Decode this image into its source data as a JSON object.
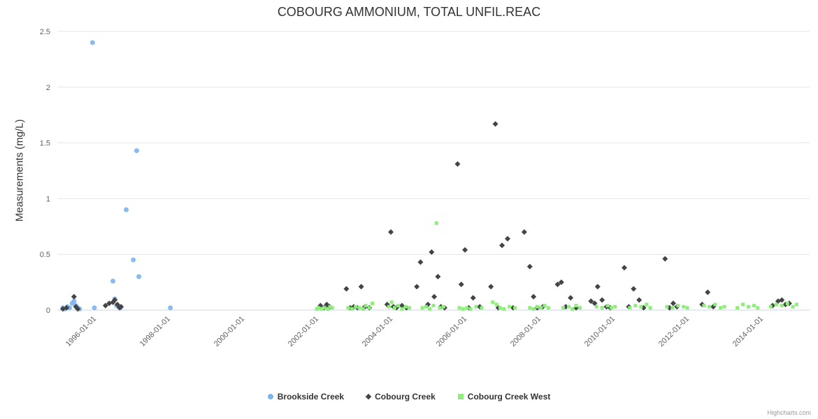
{
  "title": "COBOURG AMMONIUM, TOTAL UNFIL.REAC",
  "credit": "Highcharts.com",
  "chart_data": {
    "type": "scatter",
    "title": "COBOURG AMMONIUM, TOTAL UNFIL.REAC",
    "xlabel": "",
    "ylabel": "Measurements (mg/L)",
    "ylim": [
      0,
      2.5
    ],
    "yticks": [
      0,
      0.5,
      1,
      1.5,
      2,
      2.5
    ],
    "xlim_years": [
      1995.0,
      2015.3
    ],
    "xticks": [
      "1996-01-01",
      "1998-01-01",
      "2000-01-01",
      "2002-01-01",
      "2004-01-01",
      "2006-01-01",
      "2008-01-01",
      "2010-01-01",
      "2012-01-01",
      "2014-01-01"
    ],
    "grid": true,
    "legend_position": "bottom",
    "gridline_color": "#e6e6e6",
    "axis_line_color": "#ccd6eb",
    "series": [
      {
        "name": "Brookside Creek",
        "marker": "circle",
        "color": "#7cb5ec",
        "points": [
          [
            1995.15,
            0.02
          ],
          [
            1995.2,
            0.01
          ],
          [
            1995.27,
            0.03
          ],
          [
            1995.33,
            0.02
          ],
          [
            1995.4,
            0.06
          ],
          [
            1995.45,
            0.08
          ],
          [
            1995.5,
            0.04
          ],
          [
            1995.55,
            0.02
          ],
          [
            1995.6,
            0.01
          ],
          [
            1995.95,
            2.4
          ],
          [
            1996.0,
            0.02
          ],
          [
            1996.5,
            0.26
          ],
          [
            1996.55,
            0.1
          ],
          [
            1996.6,
            0.04
          ],
          [
            1996.65,
            0.03
          ],
          [
            1996.7,
            0.02
          ],
          [
            1996.86,
            0.9
          ],
          [
            1997.05,
            0.45
          ],
          [
            1997.14,
            1.43
          ],
          [
            1997.2,
            0.3
          ],
          [
            1998.05,
            0.02
          ]
        ]
      },
      {
        "name": "Cobourg Creek",
        "marker": "diamond",
        "color": "#434348",
        "points": [
          [
            1995.15,
            0.01
          ],
          [
            1995.25,
            0.02
          ],
          [
            1995.45,
            0.12
          ],
          [
            1995.5,
            0.03
          ],
          [
            1995.55,
            0.01
          ],
          [
            1996.3,
            0.04
          ],
          [
            1996.4,
            0.06
          ],
          [
            1996.5,
            0.07
          ],
          [
            1996.55,
            0.09
          ],
          [
            1996.62,
            0.05
          ],
          [
            1996.68,
            0.02
          ],
          [
            1996.72,
            0.03
          ],
          [
            2002.1,
            0.04
          ],
          [
            2002.2,
            0.02
          ],
          [
            2002.27,
            0.05
          ],
          [
            2002.35,
            0.03
          ],
          [
            2002.8,
            0.19
          ],
          [
            2002.9,
            0.02
          ],
          [
            2003.0,
            0.03
          ],
          [
            2003.1,
            0.02
          ],
          [
            2003.2,
            0.21
          ],
          [
            2003.3,
            0.03
          ],
          [
            2003.42,
            0.02
          ],
          [
            2003.9,
            0.05
          ],
          [
            2004.0,
            0.7
          ],
          [
            2004.07,
            0.03
          ],
          [
            2004.15,
            0.02
          ],
          [
            2004.3,
            0.04
          ],
          [
            2004.42,
            0.02
          ],
          [
            2004.7,
            0.21
          ],
          [
            2004.8,
            0.43
          ],
          [
            2005.0,
            0.05
          ],
          [
            2005.1,
            0.52
          ],
          [
            2005.17,
            0.12
          ],
          [
            2005.27,
            0.3
          ],
          [
            2005.35,
            0.03
          ],
          [
            2005.45,
            0.02
          ],
          [
            2005.8,
            1.31
          ],
          [
            2005.9,
            0.23
          ],
          [
            2006.0,
            0.54
          ],
          [
            2006.1,
            0.02
          ],
          [
            2006.22,
            0.11
          ],
          [
            2006.4,
            0.03
          ],
          [
            2006.7,
            0.21
          ],
          [
            2006.82,
            1.67
          ],
          [
            2006.9,
            0.02
          ],
          [
            2007.0,
            0.58
          ],
          [
            2007.15,
            0.64
          ],
          [
            2007.3,
            0.02
          ],
          [
            2007.6,
            0.7
          ],
          [
            2007.75,
            0.39
          ],
          [
            2007.85,
            0.12
          ],
          [
            2007.95,
            0.02
          ],
          [
            2008.1,
            0.03
          ],
          [
            2008.5,
            0.23
          ],
          [
            2008.6,
            0.25
          ],
          [
            2008.72,
            0.03
          ],
          [
            2008.85,
            0.11
          ],
          [
            2009.0,
            0.02
          ],
          [
            2009.4,
            0.08
          ],
          [
            2009.5,
            0.06
          ],
          [
            2009.58,
            0.21
          ],
          [
            2009.7,
            0.09
          ],
          [
            2009.82,
            0.03
          ],
          [
            2009.92,
            0.02
          ],
          [
            2010.3,
            0.38
          ],
          [
            2010.42,
            0.03
          ],
          [
            2010.55,
            0.19
          ],
          [
            2010.7,
            0.09
          ],
          [
            2010.82,
            0.02
          ],
          [
            2011.4,
            0.46
          ],
          [
            2011.52,
            0.02
          ],
          [
            2011.62,
            0.06
          ],
          [
            2011.72,
            0.03
          ],
          [
            2012.4,
            0.05
          ],
          [
            2012.55,
            0.16
          ],
          [
            2012.7,
            0.03
          ],
          [
            2014.3,
            0.04
          ],
          [
            2014.45,
            0.08
          ],
          [
            2014.55,
            0.09
          ],
          [
            2014.65,
            0.05
          ],
          [
            2014.75,
            0.06
          ]
        ]
      },
      {
        "name": "Cobourg Creek West",
        "marker": "square",
        "color": "#90ed7d",
        "points": [
          [
            2002.0,
            0.01
          ],
          [
            2002.05,
            0.02
          ],
          [
            2002.12,
            0.01
          ],
          [
            2002.2,
            0.02
          ],
          [
            2002.3,
            0.01
          ],
          [
            2002.36,
            0.03
          ],
          [
            2002.42,
            0.02
          ],
          [
            2002.85,
            0.02
          ],
          [
            2002.95,
            0.01
          ],
          [
            2003.05,
            0.03
          ],
          [
            2003.15,
            0.02
          ],
          [
            2003.25,
            0.01
          ],
          [
            2003.32,
            0.04
          ],
          [
            2003.42,
            0.02
          ],
          [
            2003.5,
            0.06
          ],
          [
            2003.95,
            0.03
          ],
          [
            2004.02,
            0.07
          ],
          [
            2004.1,
            0.02
          ],
          [
            2004.2,
            0.04
          ],
          [
            2004.3,
            0.01
          ],
          [
            2004.4,
            0.03
          ],
          [
            2004.5,
            0.02
          ],
          [
            2004.85,
            0.02
          ],
          [
            2004.95,
            0.03
          ],
          [
            2005.05,
            0.01
          ],
          [
            2005.15,
            0.04
          ],
          [
            2005.23,
            0.78
          ],
          [
            2005.32,
            0.02
          ],
          [
            2005.42,
            0.03
          ],
          [
            2005.85,
            0.02
          ],
          [
            2005.95,
            0.01
          ],
          [
            2006.05,
            0.02
          ],
          [
            2006.15,
            0.01
          ],
          [
            2006.3,
            0.03
          ],
          [
            2006.45,
            0.02
          ],
          [
            2006.75,
            0.07
          ],
          [
            2006.85,
            0.05
          ],
          [
            2006.95,
            0.02
          ],
          [
            2007.05,
            0.01
          ],
          [
            2007.2,
            0.03
          ],
          [
            2007.35,
            0.02
          ],
          [
            2007.75,
            0.02
          ],
          [
            2007.85,
            0.01
          ],
          [
            2007.95,
            0.03
          ],
          [
            2008.05,
            0.02
          ],
          [
            2008.15,
            0.04
          ],
          [
            2008.25,
            0.02
          ],
          [
            2008.65,
            0.02
          ],
          [
            2008.8,
            0.03
          ],
          [
            2008.9,
            0.01
          ],
          [
            2009.0,
            0.04
          ],
          [
            2009.1,
            0.02
          ],
          [
            2009.55,
            0.03
          ],
          [
            2009.7,
            0.02
          ],
          [
            2009.85,
            0.04
          ],
          [
            2009.95,
            0.02
          ],
          [
            2010.05,
            0.03
          ],
          [
            2010.45,
            0.02
          ],
          [
            2010.6,
            0.04
          ],
          [
            2010.75,
            0.03
          ],
          [
            2010.9,
            0.05
          ],
          [
            2011.0,
            0.02
          ],
          [
            2011.45,
            0.03
          ],
          [
            2011.6,
            0.02
          ],
          [
            2011.75,
            0.04
          ],
          [
            2011.9,
            0.03
          ],
          [
            2012.0,
            0.02
          ],
          [
            2012.45,
            0.04
          ],
          [
            2012.6,
            0.03
          ],
          [
            2012.75,
            0.05
          ],
          [
            2012.9,
            0.02
          ],
          [
            2013.0,
            0.03
          ],
          [
            2013.35,
            0.02
          ],
          [
            2013.5,
            0.05
          ],
          [
            2013.65,
            0.03
          ],
          [
            2013.8,
            0.04
          ],
          [
            2013.9,
            0.02
          ],
          [
            2014.25,
            0.03
          ],
          [
            2014.4,
            0.05
          ],
          [
            2014.55,
            0.04
          ],
          [
            2014.7,
            0.06
          ],
          [
            2014.85,
            0.03
          ],
          [
            2014.95,
            0.05
          ]
        ]
      }
    ]
  }
}
